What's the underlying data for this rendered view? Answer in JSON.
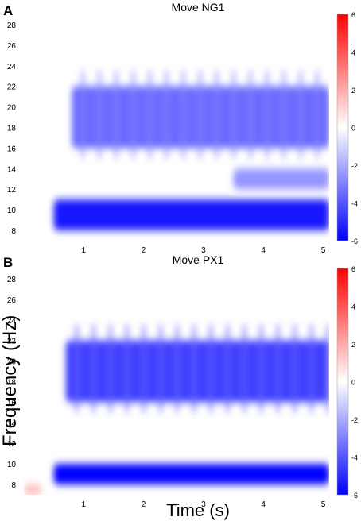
{
  "figure": {
    "ylabel": "Frequency (Hz)",
    "xlabel": "Time (s)"
  },
  "panels": [
    {
      "letter": "A",
      "title": "Move NG1"
    },
    {
      "letter": "B",
      "title": "Move PX1"
    }
  ],
  "colors": {
    "negative": "#0000ff",
    "neutral": "#ffffff",
    "positive": "#ff0000"
  },
  "chart_data": [
    {
      "type": "heatmap",
      "title": "Move NG1",
      "xlabel": "",
      "ylabel": "",
      "xlim": [
        0,
        5.1
      ],
      "ylim": [
        7,
        29
      ],
      "xticks": [
        1,
        2,
        3,
        4,
        5
      ],
      "yticks": [
        8,
        10,
        12,
        14,
        16,
        18,
        20,
        22,
        24,
        26,
        28
      ],
      "colorbar": {
        "range": [
          -6,
          6
        ],
        "ticks": [
          6,
          4,
          2,
          0,
          -2,
          -4,
          -6
        ]
      },
      "colormap": "blue-white-red",
      "bands": [
        {
          "freq_range": [
            8,
            11
          ],
          "time_range": [
            0.5,
            5.1
          ],
          "value": -5.5
        },
        {
          "freq_range": [
            16,
            22
          ],
          "time_range": [
            0.8,
            5.1
          ],
          "value": -3.5
        },
        {
          "freq_range": [
            12,
            14
          ],
          "time_range": [
            3.5,
            5.1
          ],
          "value": -2.5
        }
      ]
    },
    {
      "type": "heatmap",
      "title": "Move PX1",
      "xlabel": "Time (s)",
      "ylabel": "Frequency (Hz)",
      "xlim": [
        0,
        5.1
      ],
      "ylim": [
        7,
        29
      ],
      "xticks": [
        1,
        2,
        3,
        4,
        5
      ],
      "yticks": [
        8,
        10,
        12,
        14,
        16,
        18,
        20,
        22,
        24,
        26,
        28
      ],
      "colorbar": {
        "range": [
          -6,
          6
        ],
        "ticks": [
          6,
          4,
          2,
          0,
          -2,
          -4,
          -6
        ]
      },
      "colormap": "blue-white-red",
      "bands": [
        {
          "freq_range": [
            8,
            10
          ],
          "time_range": [
            0.5,
            5.1
          ],
          "value": -6
        },
        {
          "freq_range": [
            16,
            22
          ],
          "time_range": [
            0.7,
            5.1
          ],
          "value": -4.5
        },
        {
          "freq_range": [
            7,
            8
          ],
          "time_range": [
            0,
            0.3
          ],
          "value": 1.5
        }
      ]
    }
  ]
}
